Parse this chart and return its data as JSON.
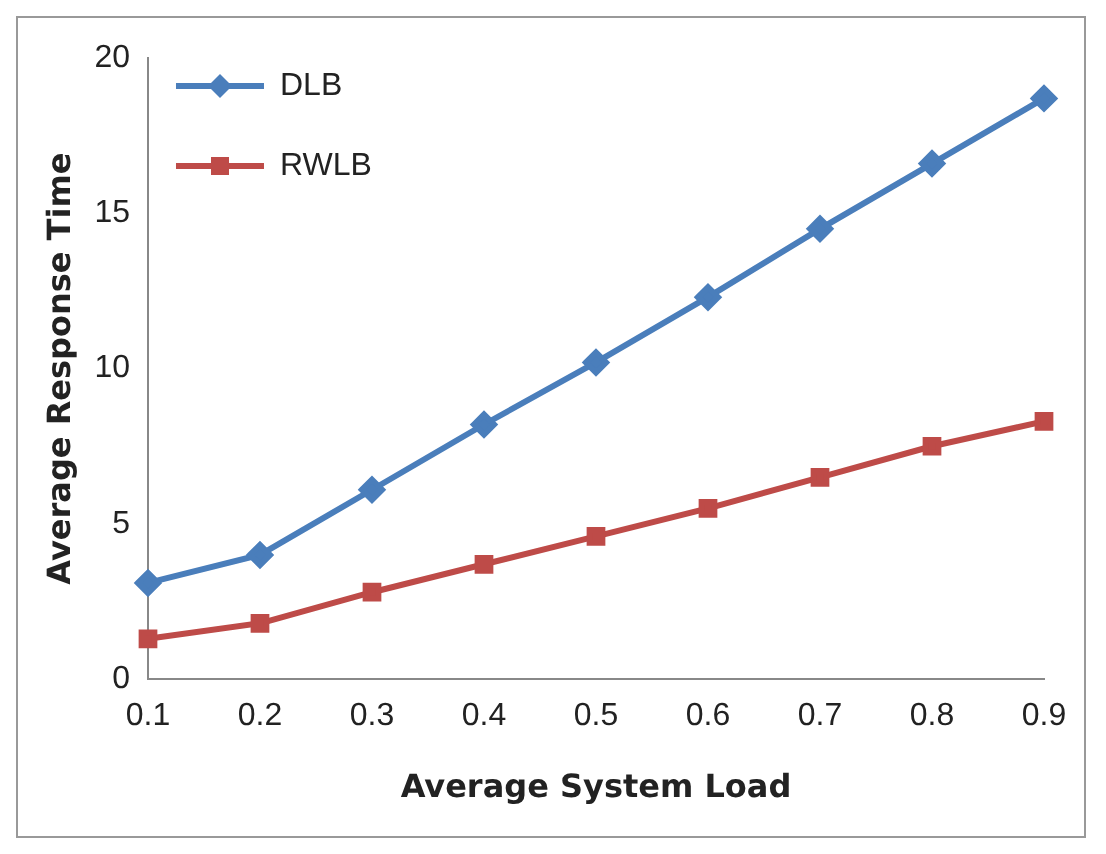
{
  "chart_data": {
    "type": "line",
    "xlabel": "Average System Load",
    "ylabel": "Average Response Time",
    "categories": [
      "0.1",
      "0.2",
      "0.3",
      "0.4",
      "0.5",
      "0.6",
      "0.7",
      "0.8",
      "0.9"
    ],
    "series": [
      {
        "name": "DLB",
        "color": "#4a7ebb",
        "marker": "diamond",
        "values": [
          3.1,
          4.0,
          6.1,
          8.2,
          10.2,
          12.3,
          14.5,
          16.6,
          18.7
        ]
      },
      {
        "name": "RWLB",
        "color": "#be4b48",
        "marker": "square",
        "values": [
          1.3,
          1.8,
          2.8,
          3.7,
          4.6,
          5.5,
          6.5,
          7.5,
          8.3
        ]
      }
    ],
    "ylim": [
      0,
      20
    ],
    "yticks": [
      0,
      5,
      10,
      15,
      20
    ],
    "grid": false,
    "legend": "top left",
    "line_style": "solid"
  }
}
